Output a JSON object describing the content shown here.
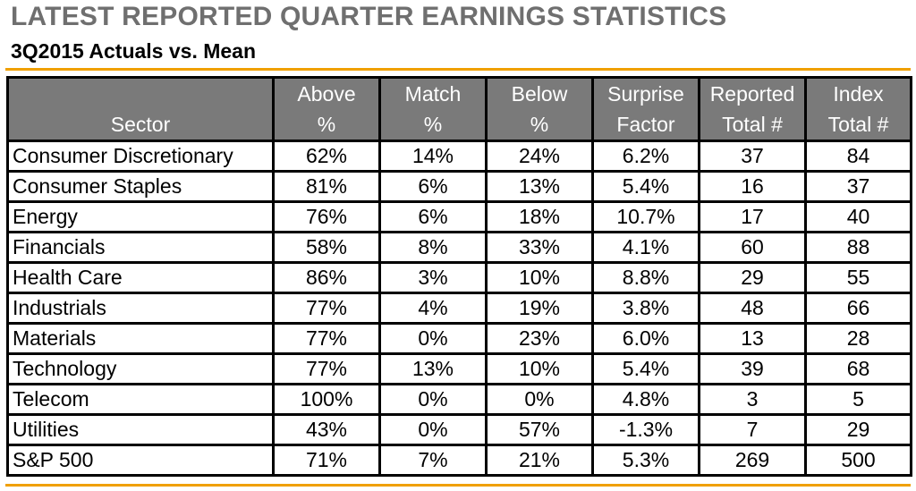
{
  "header": {
    "title": "LATEST REPORTED QUARTER EARNINGS STATISTICS",
    "subtitle": "3Q2015 Actuals vs. Mean"
  },
  "colors": {
    "title_gray": "#6f6f6f",
    "header_fill": "#7a7a7a",
    "accent_rule": "#f0a000"
  },
  "table": {
    "columns": [
      {
        "line1": "",
        "line2": "Sector"
      },
      {
        "line1": "Above",
        "line2": "%"
      },
      {
        "line1": "Match",
        "line2": "%"
      },
      {
        "line1": "Below",
        "line2": "%"
      },
      {
        "line1": "Surprise",
        "line2": "Factor"
      },
      {
        "line1": "Reported",
        "line2": "Total #"
      },
      {
        "line1": "Index",
        "line2": "Total #"
      }
    ],
    "rows": [
      [
        "Consumer Discretionary",
        "62%",
        "14%",
        "24%",
        "6.2%",
        "37",
        "84"
      ],
      [
        "Consumer Staples",
        "81%",
        "6%",
        "13%",
        "5.4%",
        "16",
        "37"
      ],
      [
        "Energy",
        "76%",
        "6%",
        "18%",
        "10.7%",
        "17",
        "40"
      ],
      [
        "Financials",
        "58%",
        "8%",
        "33%",
        "4.1%",
        "60",
        "88"
      ],
      [
        "Health Care",
        "86%",
        "3%",
        "10%",
        "8.8%",
        "29",
        "55"
      ],
      [
        "Industrials",
        "77%",
        "4%",
        "19%",
        "3.8%",
        "48",
        "66"
      ],
      [
        "Materials",
        "77%",
        "0%",
        "23%",
        "6.0%",
        "13",
        "28"
      ],
      [
        "Technology",
        "77%",
        "13%",
        "10%",
        "5.4%",
        "39",
        "68"
      ],
      [
        "Telecom",
        "100%",
        "0%",
        "0%",
        "4.8%",
        "3",
        "5"
      ],
      [
        "Utilities",
        "43%",
        "0%",
        "57%",
        "-1.3%",
        "7",
        "29"
      ],
      [
        "S&P 500",
        "71%",
        "7%",
        "21%",
        "5.3%",
        "269",
        "500"
      ]
    ]
  }
}
